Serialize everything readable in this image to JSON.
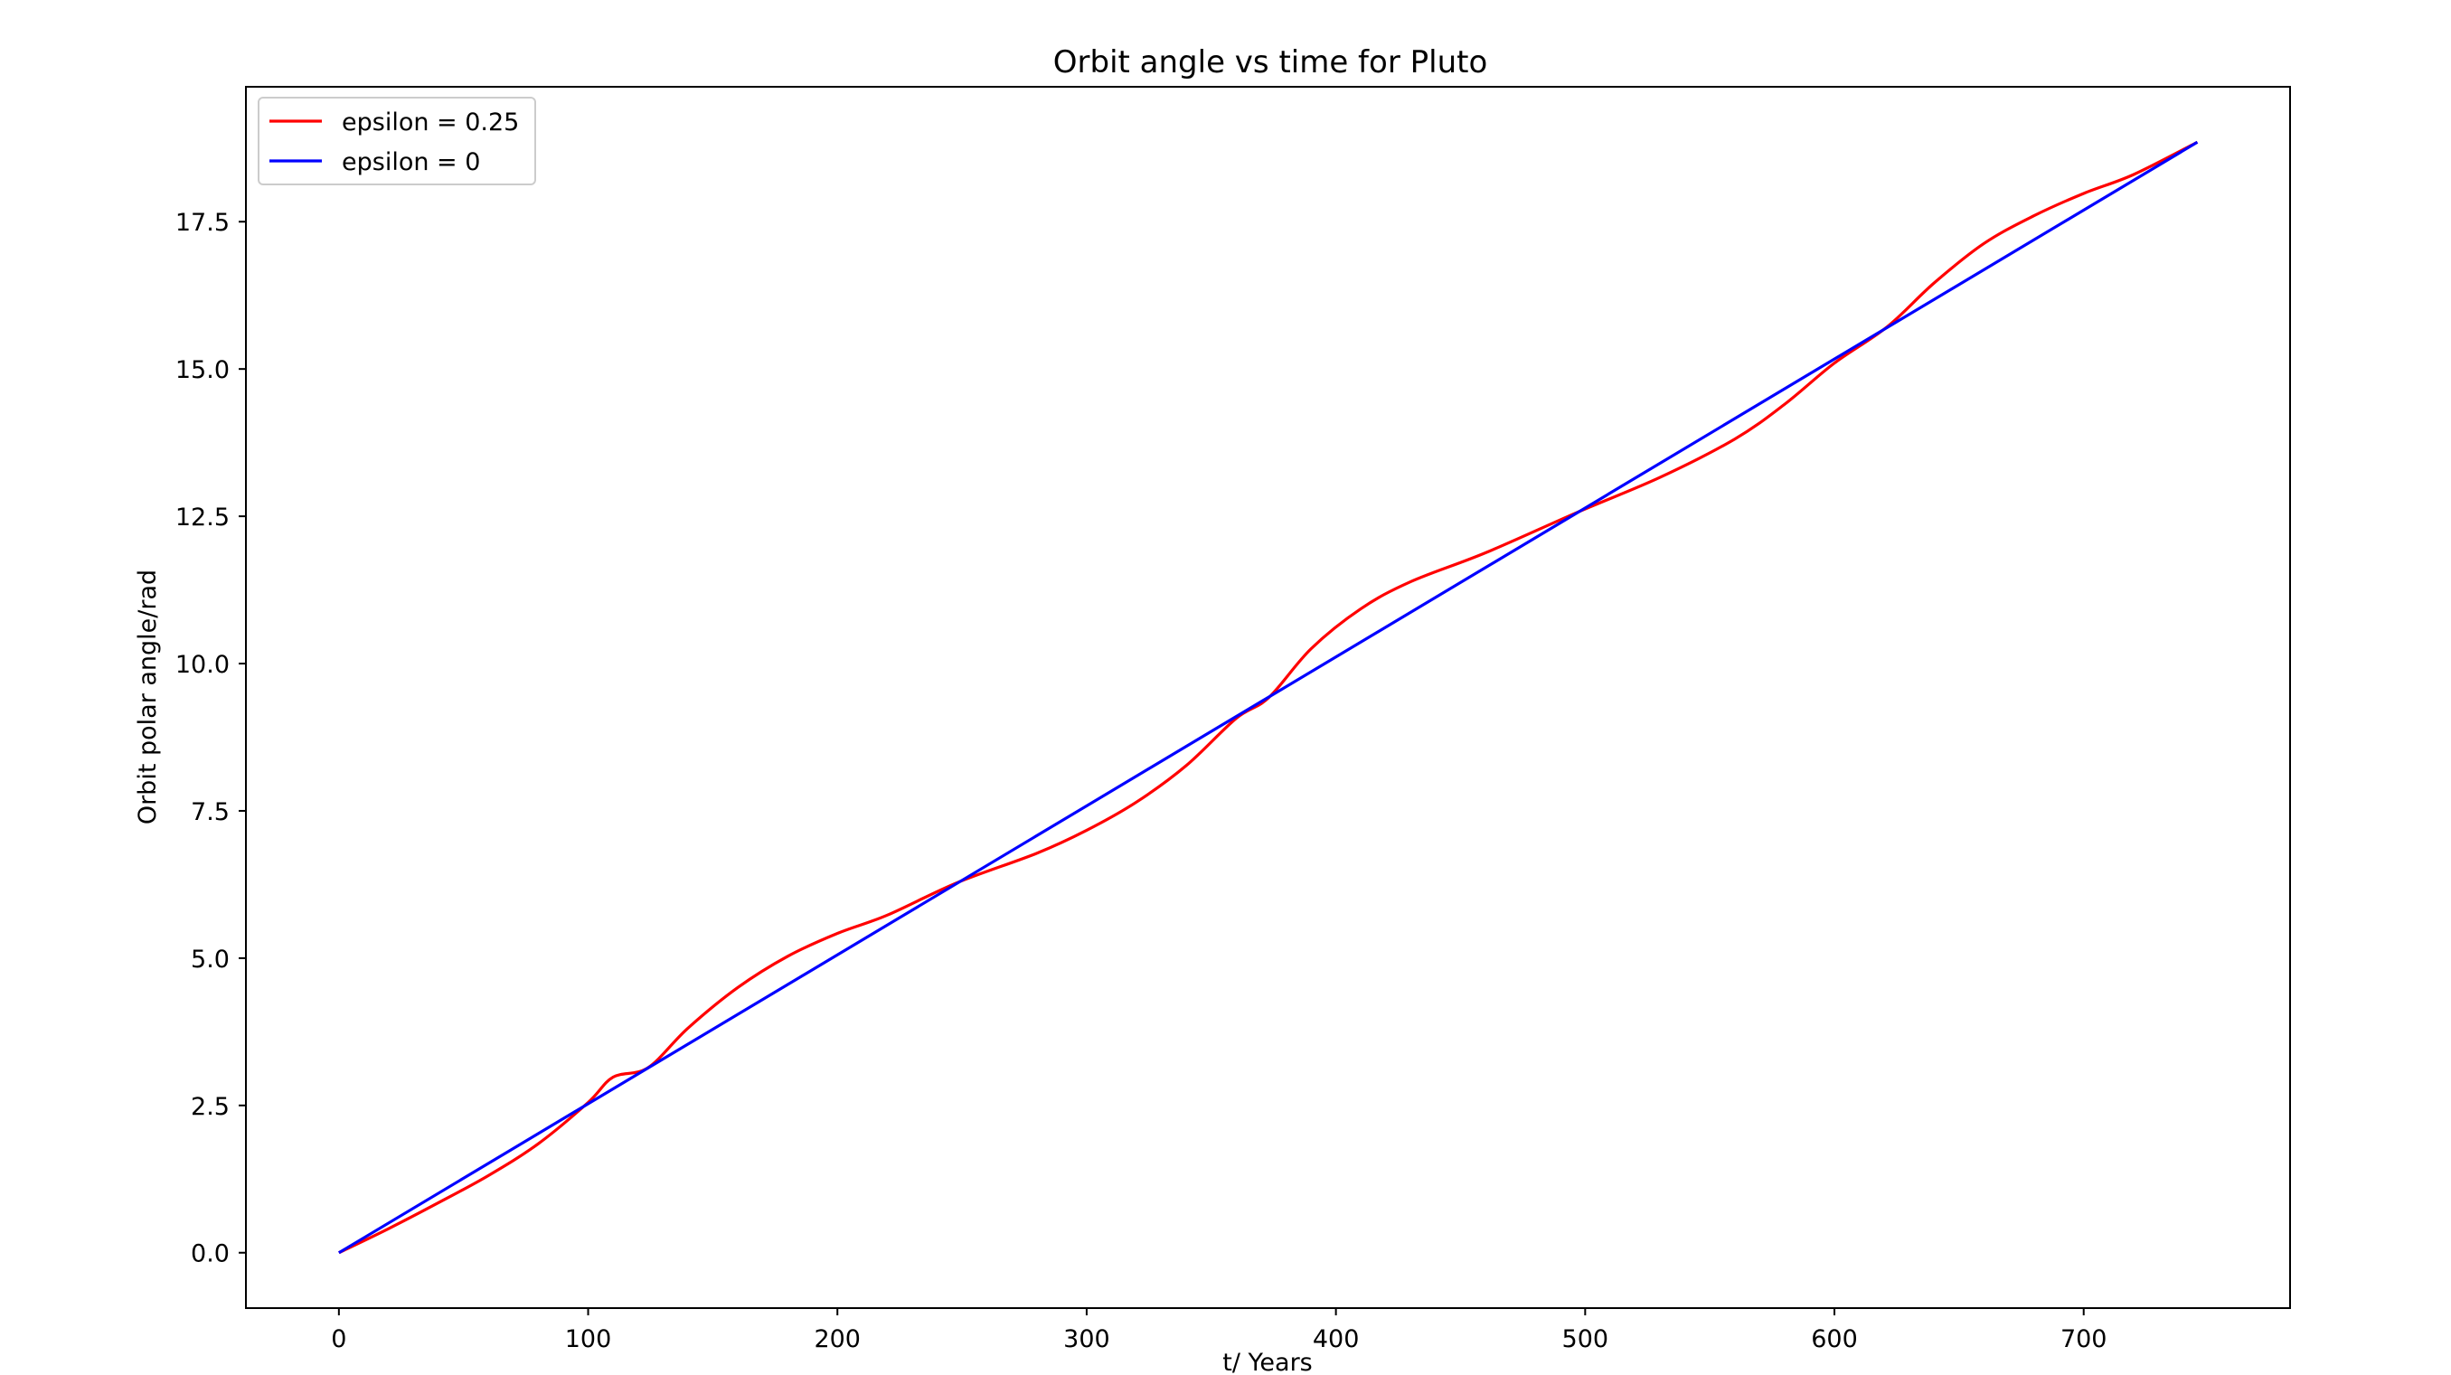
{
  "chart_data": {
    "type": "line",
    "title": "Orbit angle vs time for Pluto",
    "xlabel": "t/ Years",
    "ylabel": "Orbit polar angle/rad",
    "xlim": [
      -37.3,
      782.8
    ],
    "ylim": [
      -0.94,
      19.79
    ],
    "x_ticks": [
      {
        "value": 0,
        "label": "0"
      },
      {
        "value": 100,
        "label": "100"
      },
      {
        "value": 200,
        "label": "200"
      },
      {
        "value": 300,
        "label": "300"
      },
      {
        "value": 400,
        "label": "400"
      },
      {
        "value": 500,
        "label": "500"
      },
      {
        "value": 600,
        "label": "600"
      },
      {
        "value": 700,
        "label": "700"
      }
    ],
    "y_ticks": [
      {
        "value": 0,
        "label": "0.0"
      },
      {
        "value": 2.5,
        "label": "2.5"
      },
      {
        "value": 5,
        "label": "5.0"
      },
      {
        "value": 7.5,
        "label": "7.5"
      },
      {
        "value": 10,
        "label": "10.0"
      },
      {
        "value": 12.5,
        "label": "12.5"
      },
      {
        "value": 15,
        "label": "15.0"
      },
      {
        "value": 17.5,
        "label": "17.5"
      }
    ],
    "grid": false,
    "legend_position": "upper-left",
    "series": [
      {
        "name": "epsilon = 0.25",
        "color": "#ff0000",
        "x": [
          0,
          20,
          40,
          60,
          80,
          100,
          110,
          124,
          140,
          160,
          180,
          200,
          220,
          248,
          280,
          300,
          320,
          340,
          360,
          373,
          390,
          410,
          430,
          460,
          497,
          530,
          560,
          580,
          600,
          621,
          640,
          660,
          680,
          700,
          720,
          745.6
        ],
        "y": [
          0,
          0.41,
          0.85,
          1.31,
          1.85,
          2.55,
          2.98,
          3.14,
          3.81,
          4.5,
          5.03,
          5.42,
          5.73,
          6.28,
          6.78,
          7.17,
          7.65,
          8.27,
          9.07,
          9.42,
          10.25,
          10.93,
          11.39,
          11.88,
          12.57,
          13.16,
          13.81,
          14.4,
          15.1,
          15.71,
          16.46,
          17.13,
          17.6,
          17.98,
          18.3,
          18.85
        ]
      },
      {
        "name": "epsilon = 0",
        "color": "#0000ff",
        "x": [
          0,
          745.6
        ],
        "y": [
          0,
          18.85
        ]
      }
    ]
  }
}
